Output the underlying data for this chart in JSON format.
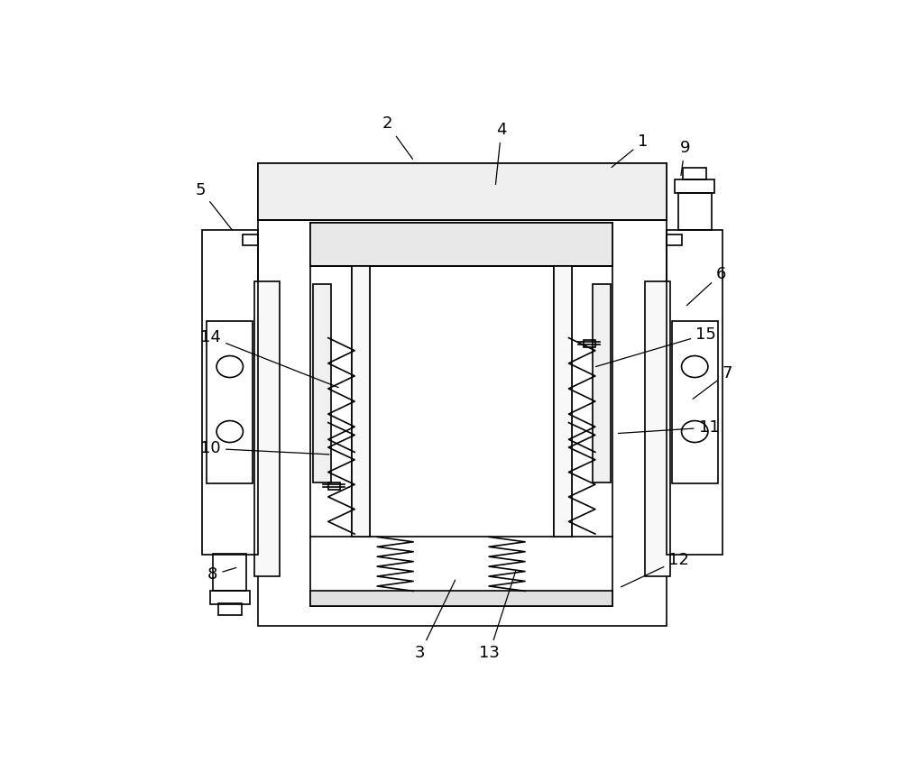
{
  "bg": "#ffffff",
  "lc": "#000000",
  "lw": 1.2,
  "fw": 10.0,
  "fh": 8.66,
  "fs": 13,
  "labels": {
    "1": [
      0.8,
      0.92,
      0.745,
      0.875
    ],
    "2": [
      0.375,
      0.95,
      0.42,
      0.888
    ],
    "3": [
      0.43,
      0.07,
      0.49,
      0.195
    ],
    "4": [
      0.565,
      0.94,
      0.555,
      0.845
    ],
    "5": [
      0.065,
      0.84,
      0.12,
      0.77
    ],
    "6": [
      0.93,
      0.7,
      0.87,
      0.645
    ],
    "7": [
      0.94,
      0.535,
      0.88,
      0.49
    ],
    "8": [
      0.085,
      0.2,
      0.128,
      0.213
    ],
    "9": [
      0.87,
      0.91,
      0.863,
      0.86
    ],
    "10": [
      0.082,
      0.41,
      0.283,
      0.4
    ],
    "11": [
      0.91,
      0.445,
      0.755,
      0.435
    ],
    "12": [
      0.86,
      0.225,
      0.76,
      0.178
    ],
    "13": [
      0.545,
      0.07,
      0.59,
      0.21
    ],
    "14": [
      0.082,
      0.595,
      0.298,
      0.51
    ],
    "15": [
      0.905,
      0.6,
      0.718,
      0.545
    ]
  }
}
